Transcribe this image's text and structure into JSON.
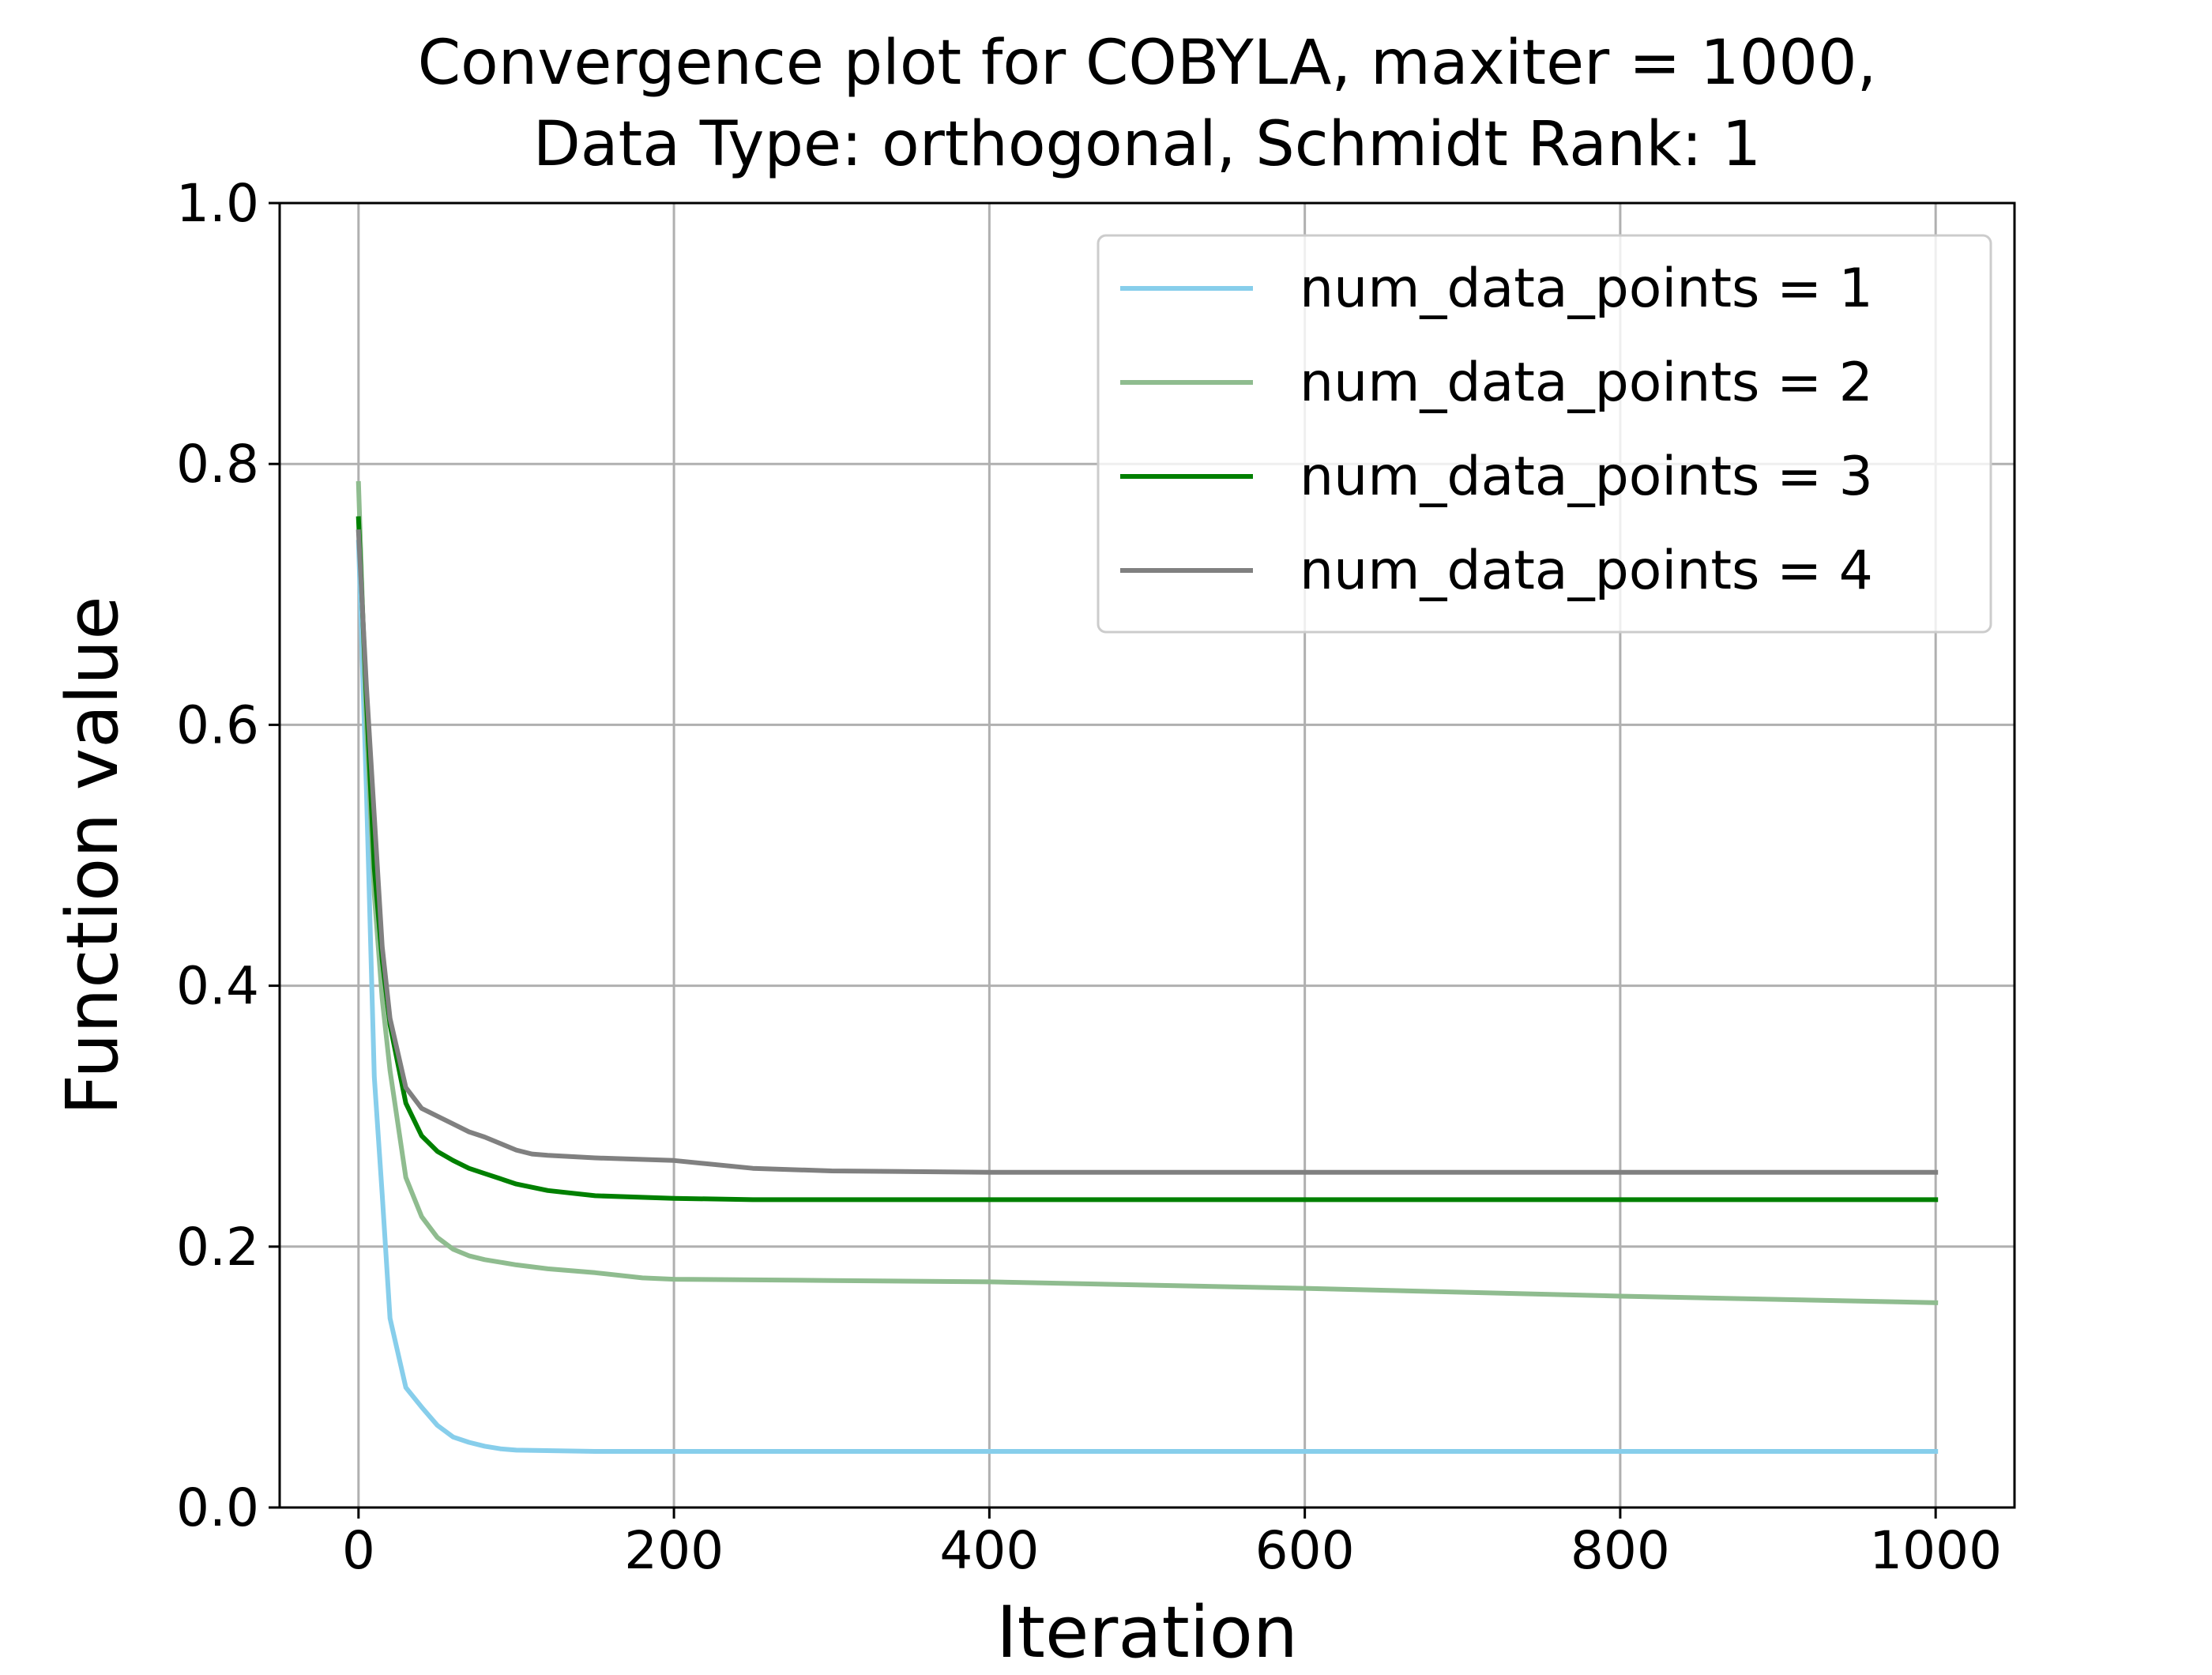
{
  "chart_data": {
    "type": "line",
    "title": [
      "Convergence plot for COBYLA, maxiter = 1000,",
      "Data Type: orthogonal, Schmidt Rank: 1"
    ],
    "xlabel": "Iteration",
    "ylabel": "Function value",
    "xlim": [
      -50,
      1050
    ],
    "ylim": [
      0.0,
      1.0
    ],
    "xticks": [
      0,
      200,
      400,
      600,
      800,
      1000
    ],
    "xtick_labels": [
      "0",
      "200",
      "400",
      "600",
      "800",
      "1000"
    ],
    "yticks": [
      0.0,
      0.2,
      0.4,
      0.6,
      0.8,
      1.0
    ],
    "ytick_labels": [
      "0.0",
      "0.2",
      "0.4",
      "0.6",
      "0.8",
      "1.0"
    ],
    "grid": true,
    "legend_position": "top-right",
    "series": [
      {
        "name": "num_data_points = 1",
        "color": "#87ceeb",
        "x": [
          0,
          5,
          10,
          15,
          20,
          30,
          40,
          50,
          60,
          70,
          80,
          90,
          100,
          150,
          200,
          400,
          600,
          800,
          1000
        ],
        "y": [
          0.74,
          0.55,
          0.33,
          0.24,
          0.145,
          0.092,
          0.077,
          0.063,
          0.054,
          0.05,
          0.047,
          0.045,
          0.044,
          0.043,
          0.043,
          0.043,
          0.043,
          0.043,
          0.043
        ]
      },
      {
        "name": "num_data_points = 2",
        "color": "#8fbc8f",
        "x": [
          0,
          5,
          10,
          15,
          20,
          30,
          40,
          50,
          60,
          70,
          80,
          100,
          120,
          150,
          180,
          200,
          300,
          400,
          600,
          800,
          1000
        ],
        "y": [
          0.785,
          0.6,
          0.47,
          0.39,
          0.335,
          0.253,
          0.223,
          0.207,
          0.198,
          0.193,
          0.19,
          0.186,
          0.183,
          0.18,
          0.176,
          0.175,
          0.174,
          0.173,
          0.168,
          0.162,
          0.157
        ]
      },
      {
        "name": "num_data_points = 3",
        "color": "#008000",
        "x": [
          0,
          5,
          10,
          15,
          20,
          30,
          40,
          50,
          60,
          70,
          80,
          90,
          100,
          120,
          150,
          200,
          250,
          300,
          400,
          600,
          800,
          1000
        ],
        "y": [
          0.758,
          0.62,
          0.49,
          0.42,
          0.37,
          0.31,
          0.285,
          0.273,
          0.266,
          0.26,
          0.256,
          0.252,
          0.248,
          0.243,
          0.239,
          0.237,
          0.236,
          0.236,
          0.236,
          0.236,
          0.236,
          0.236
        ]
      },
      {
        "name": "num_data_points = 4",
        "color": "#808080",
        "x": [
          0,
          5,
          10,
          15,
          20,
          30,
          40,
          50,
          60,
          70,
          80,
          90,
          100,
          110,
          120,
          150,
          200,
          250,
          300,
          400,
          600,
          800,
          1000
        ],
        "y": [
          0.748,
          0.63,
          0.53,
          0.43,
          0.375,
          0.322,
          0.306,
          0.3,
          0.294,
          0.288,
          0.284,
          0.279,
          0.274,
          0.271,
          0.27,
          0.268,
          0.266,
          0.26,
          0.258,
          0.257,
          0.257,
          0.257,
          0.257
        ]
      }
    ]
  }
}
